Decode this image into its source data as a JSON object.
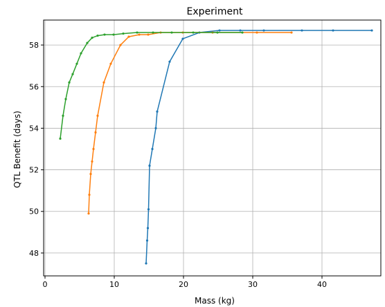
{
  "chart_data": {
    "type": "line",
    "title": "Experiment",
    "xlabel": "Mass (kg)",
    "ylabel": "QTL Benefit (days)",
    "xlim": [
      -0.2,
      48.5
    ],
    "ylim": [
      46.9,
      59.2
    ],
    "xticks": [
      0,
      10,
      20,
      30,
      40
    ],
    "yticks": [
      48,
      50,
      52,
      54,
      56,
      58
    ],
    "grid": true,
    "series": [
      {
        "color": "#1f77b4",
        "points": [
          [
            14.6,
            47.5
          ],
          [
            14.75,
            48.6
          ],
          [
            14.85,
            49.2
          ],
          [
            14.95,
            50.1
          ],
          [
            15.1,
            52.2
          ],
          [
            15.5,
            53.0
          ],
          [
            16.0,
            54.0
          ],
          [
            16.2,
            54.8
          ],
          [
            18.0,
            57.2
          ],
          [
            19.9,
            58.3
          ],
          [
            22.3,
            58.6
          ],
          [
            25.2,
            58.7
          ],
          [
            28.2,
            58.7
          ],
          [
            31.6,
            58.7
          ],
          [
            37.1,
            58.7
          ],
          [
            41.6,
            58.7
          ],
          [
            47.2,
            58.7
          ]
        ]
      },
      {
        "color": "#ff7f0e",
        "points": [
          [
            6.3,
            49.9
          ],
          [
            6.4,
            50.8
          ],
          [
            6.6,
            51.8
          ],
          [
            6.8,
            52.4
          ],
          [
            7.0,
            53.0
          ],
          [
            7.3,
            53.8
          ],
          [
            7.6,
            54.6
          ],
          [
            8.5,
            56.2
          ],
          [
            9.5,
            57.1
          ],
          [
            10.9,
            58.0
          ],
          [
            12.1,
            58.4
          ],
          [
            13.6,
            58.5
          ],
          [
            14.9,
            58.5
          ],
          [
            16.7,
            58.6
          ],
          [
            19.9,
            58.6
          ],
          [
            24.2,
            58.6
          ],
          [
            30.6,
            58.6
          ],
          [
            35.6,
            58.6
          ]
        ]
      },
      {
        "color": "#2ca02c",
        "points": [
          [
            2.2,
            53.5
          ],
          [
            2.6,
            54.6
          ],
          [
            3.0,
            55.4
          ],
          [
            3.5,
            56.2
          ],
          [
            4.0,
            56.6
          ],
          [
            4.6,
            57.1
          ],
          [
            5.2,
            57.6
          ],
          [
            6.1,
            58.1
          ],
          [
            6.8,
            58.35
          ],
          [
            7.6,
            58.45
          ],
          [
            8.6,
            58.5
          ],
          [
            9.9,
            58.5
          ],
          [
            11.3,
            58.55
          ],
          [
            13.3,
            58.6
          ],
          [
            15.6,
            58.6
          ],
          [
            18.3,
            58.6
          ],
          [
            21.4,
            58.6
          ],
          [
            24.9,
            58.6
          ],
          [
            28.5,
            58.6
          ]
        ]
      }
    ]
  }
}
